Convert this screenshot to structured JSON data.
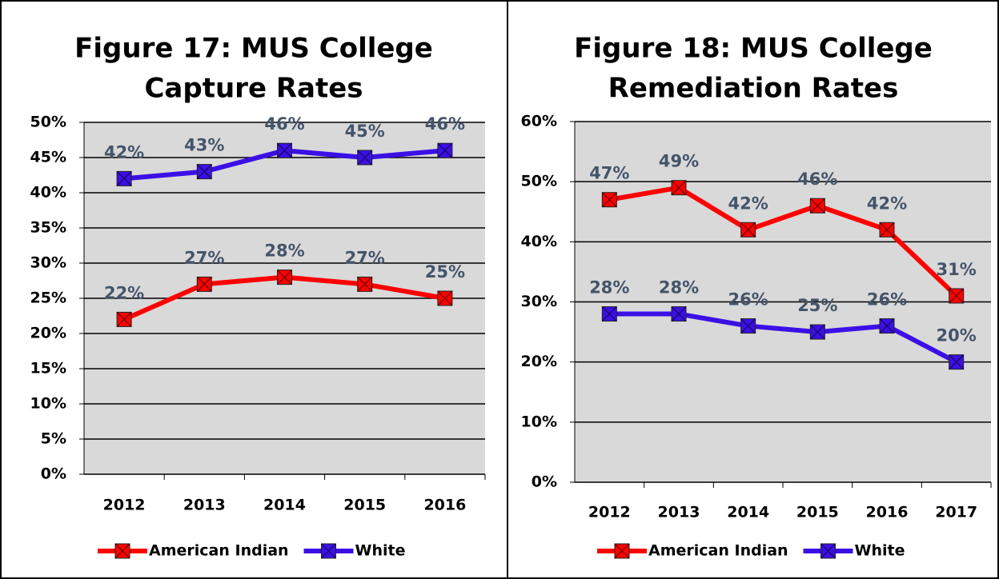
{
  "chart_data": [
    {
      "type": "line",
      "title": [
        "Figure 17:  MUS College",
        "Capture Rates"
      ],
      "categories": [
        "2012",
        "2013",
        "2014",
        "2015",
        "2016"
      ],
      "series": [
        {
          "name": "American Indian",
          "color": "#ff0000",
          "values": [
            22,
            27,
            28,
            27,
            25
          ],
          "value_labels": [
            "22%",
            "27%",
            "28%",
            "27%",
            "25%"
          ]
        },
        {
          "name": "White",
          "color": "#3b10e6",
          "values": [
            42,
            43,
            46,
            45,
            46
          ],
          "value_labels": [
            "42%",
            "43%",
            "46%",
            "45%",
            "46%"
          ]
        }
      ],
      "ylim": [
        0,
        50
      ],
      "yticks": [
        {
          "value": 0,
          "label": "0%"
        },
        {
          "value": 5,
          "label": "5%"
        },
        {
          "value": 10,
          "label": "10%"
        },
        {
          "value": 15,
          "label": "15%"
        },
        {
          "value": 20,
          "label": "20%"
        },
        {
          "value": 25,
          "label": "25%"
        },
        {
          "value": 30,
          "label": "30%"
        },
        {
          "value": 35,
          "label": "35%"
        },
        {
          "value": 40,
          "label": "40%"
        },
        {
          "value": 45,
          "label": "45%"
        },
        {
          "value": 50,
          "label": "50%"
        }
      ],
      "grid": true,
      "legend": "bottom"
    },
    {
      "type": "line",
      "title": [
        "Figure 18:  MUS College",
        "Remediation Rates"
      ],
      "categories": [
        "2012",
        "2013",
        "2014",
        "2015",
        "2016",
        "2017"
      ],
      "series": [
        {
          "name": "American Indian",
          "color": "#ff0000",
          "values": [
            47,
            49,
            42,
            46,
            42,
            31
          ],
          "value_labels": [
            "47%",
            "49%",
            "42%",
            "46%",
            "42%",
            "31%"
          ]
        },
        {
          "name": "White",
          "color": "#3b10e6",
          "values": [
            28,
            28,
            26,
            25,
            26,
            20
          ],
          "value_labels": [
            "28%",
            "28%",
            "26%",
            "25%",
            "26%",
            "20%"
          ]
        }
      ],
      "ylim": [
        0,
        60
      ],
      "yticks": [
        {
          "value": 0,
          "label": "0%"
        },
        {
          "value": 10,
          "label": "10%"
        },
        {
          "value": 20,
          "label": "20%"
        },
        {
          "value": 30,
          "label": "30%"
        },
        {
          "value": 40,
          "label": "40%"
        },
        {
          "value": 50,
          "label": "50%"
        },
        {
          "value": 60,
          "label": "60%"
        }
      ],
      "grid": true,
      "legend": "bottom"
    }
  ]
}
